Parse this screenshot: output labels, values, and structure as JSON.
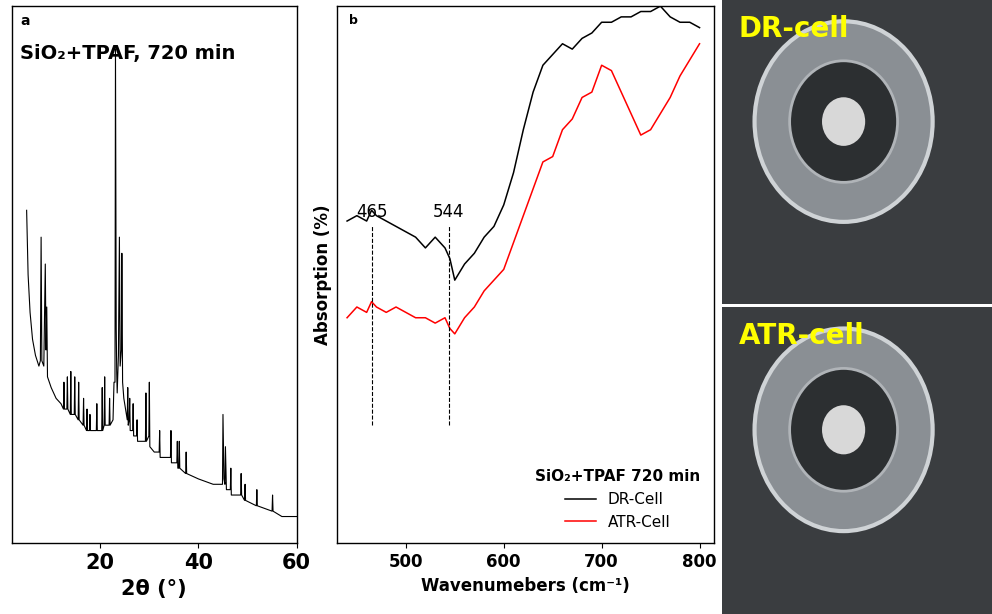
{
  "chart_data": [
    {
      "type": "line",
      "panel_label": "a",
      "title": "SiO₂+TPAF, 720 min",
      "x_label": "2θ (°)",
      "xlim": [
        2,
        60
      ],
      "xticks": [
        20,
        40,
        60
      ],
      "ylim": [
        0,
        100
      ],
      "tick_labels": "x",
      "color": "#000000",
      "x": [
        5.0,
        5.3,
        5.7,
        6.2,
        6.8,
        7.5,
        7.8,
        7.95,
        8.1,
        8.5,
        8.8,
        8.95,
        9.1,
        9.25,
        10,
        11,
        12,
        12.5,
        12.6,
        12.7,
        13.2,
        13.3,
        13.4,
        13.9,
        14.0,
        14.1,
        14.7,
        14.8,
        14.9,
        15.5,
        15.6,
        15.7,
        16.5,
        16.6,
        16.7,
        17.2,
        17.3,
        17.4,
        17.8,
        17.9,
        18.0,
        19.2,
        19.3,
        19.4,
        20.3,
        20.4,
        20.5,
        20.8,
        20.9,
        21.0,
        21.8,
        21.9,
        22.0,
        22.6,
        22.8,
        23.0,
        23.1,
        23.25,
        23.35,
        23.45,
        23.7,
        23.9,
        24.05,
        24.3,
        24.4,
        24.55,
        24.8,
        25.5,
        25.6,
        25.7,
        25.9,
        26.0,
        26.1,
        26.6,
        26.7,
        26.8,
        27.4,
        27.5,
        27.6,
        29.2,
        29.3,
        29.4,
        29.9,
        30.0,
        30.1,
        31,
        32.0,
        32.1,
        32.2,
        33,
        34.3,
        34.4,
        34.5,
        35.6,
        35.7,
        35.8,
        36.0,
        36.1,
        36.2,
        37.4,
        37.5,
        37.6,
        40,
        43,
        44.9,
        45.0,
        45.2,
        45.4,
        45.5,
        45.7,
        46.5,
        46.6,
        46.7,
        48.6,
        48.7,
        48.8,
        49.4,
        49.5,
        49.6,
        51.8,
        51.9,
        52,
        55.0,
        55.1,
        55.2,
        57,
        60
      ],
      "values": [
        62,
        50,
        43,
        38,
        35,
        33,
        34,
        57,
        34,
        33,
        52,
        36,
        44,
        31,
        29,
        27,
        26,
        25,
        30,
        25,
        25,
        31,
        25,
        24,
        32,
        24,
        24,
        31,
        24,
        23,
        30,
        23,
        22,
        27,
        22,
        21,
        25,
        21,
        21,
        24,
        21,
        21,
        26,
        21,
        21,
        29,
        21,
        22,
        31,
        22,
        22,
        27,
        22,
        23,
        30,
        30,
        92,
        40,
        32,
        28,
        35,
        57,
        33,
        36,
        54,
        30,
        27,
        23,
        29,
        22,
        23,
        27,
        21,
        21,
        26,
        20,
        20,
        23,
        19,
        19,
        28,
        19,
        20,
        30,
        18,
        17,
        17,
        21,
        16,
        16,
        16,
        21,
        15,
        15,
        19,
        14,
        14,
        19,
        14,
        13,
        17,
        13,
        12,
        11,
        11,
        24,
        12,
        11,
        18,
        10,
        10,
        14,
        9,
        9,
        13,
        9,
        8,
        11,
        8,
        7,
        10,
        7,
        6,
        9,
        6,
        5,
        5
      ]
    },
    {
      "type": "line",
      "panel_label": "b",
      "x_label": "Wavenumebers (cm⁻¹)",
      "y_label": "Absorption (%)",
      "legend_title": "SiO₂+TPAF 720 min",
      "legend": "lower right",
      "xlim": [
        430,
        815
      ],
      "xticks": [
        500,
        600,
        700,
        800
      ],
      "ylim": [
        0,
        100
      ],
      "tick_labels": "x",
      "annotations": [
        {
          "text": "465",
          "x": 465
        },
        {
          "text": "544",
          "x": 544
        }
      ],
      "x": [
        440,
        450,
        460,
        465,
        470,
        480,
        490,
        500,
        510,
        520,
        530,
        540,
        545,
        550,
        560,
        570,
        580,
        590,
        600,
        610,
        620,
        630,
        640,
        650,
        660,
        670,
        680,
        690,
        700,
        710,
        720,
        730,
        740,
        750,
        760,
        770,
        780,
        790,
        800
      ],
      "series": [
        {
          "name": "DR-Cell",
          "color": "#000000",
          "values": [
            60,
            61,
            60,
            62,
            61,
            60,
            59,
            58,
            57,
            55,
            57,
            55,
            53,
            49,
            52,
            54,
            57,
            59,
            63,
            69,
            77,
            84,
            89,
            91,
            93,
            92,
            94,
            95,
            97,
            97,
            98,
            98,
            99,
            99,
            100,
            98,
            97,
            97,
            96
          ]
        },
        {
          "name": "ATR-Cell",
          "color": "#ff0000",
          "values": [
            42,
            44,
            43,
            45,
            44,
            43,
            44,
            43,
            42,
            42,
            41,
            42,
            40,
            39,
            42,
            44,
            47,
            49,
            51,
            56,
            61,
            66,
            71,
            72,
            77,
            79,
            83,
            84,
            89,
            88,
            84,
            80,
            76,
            77,
            80,
            83,
            87,
            90,
            93
          ]
        }
      ]
    }
  ],
  "photos": [
    {
      "label": "DR-cell"
    },
    {
      "label": "ATR-cell"
    }
  ]
}
